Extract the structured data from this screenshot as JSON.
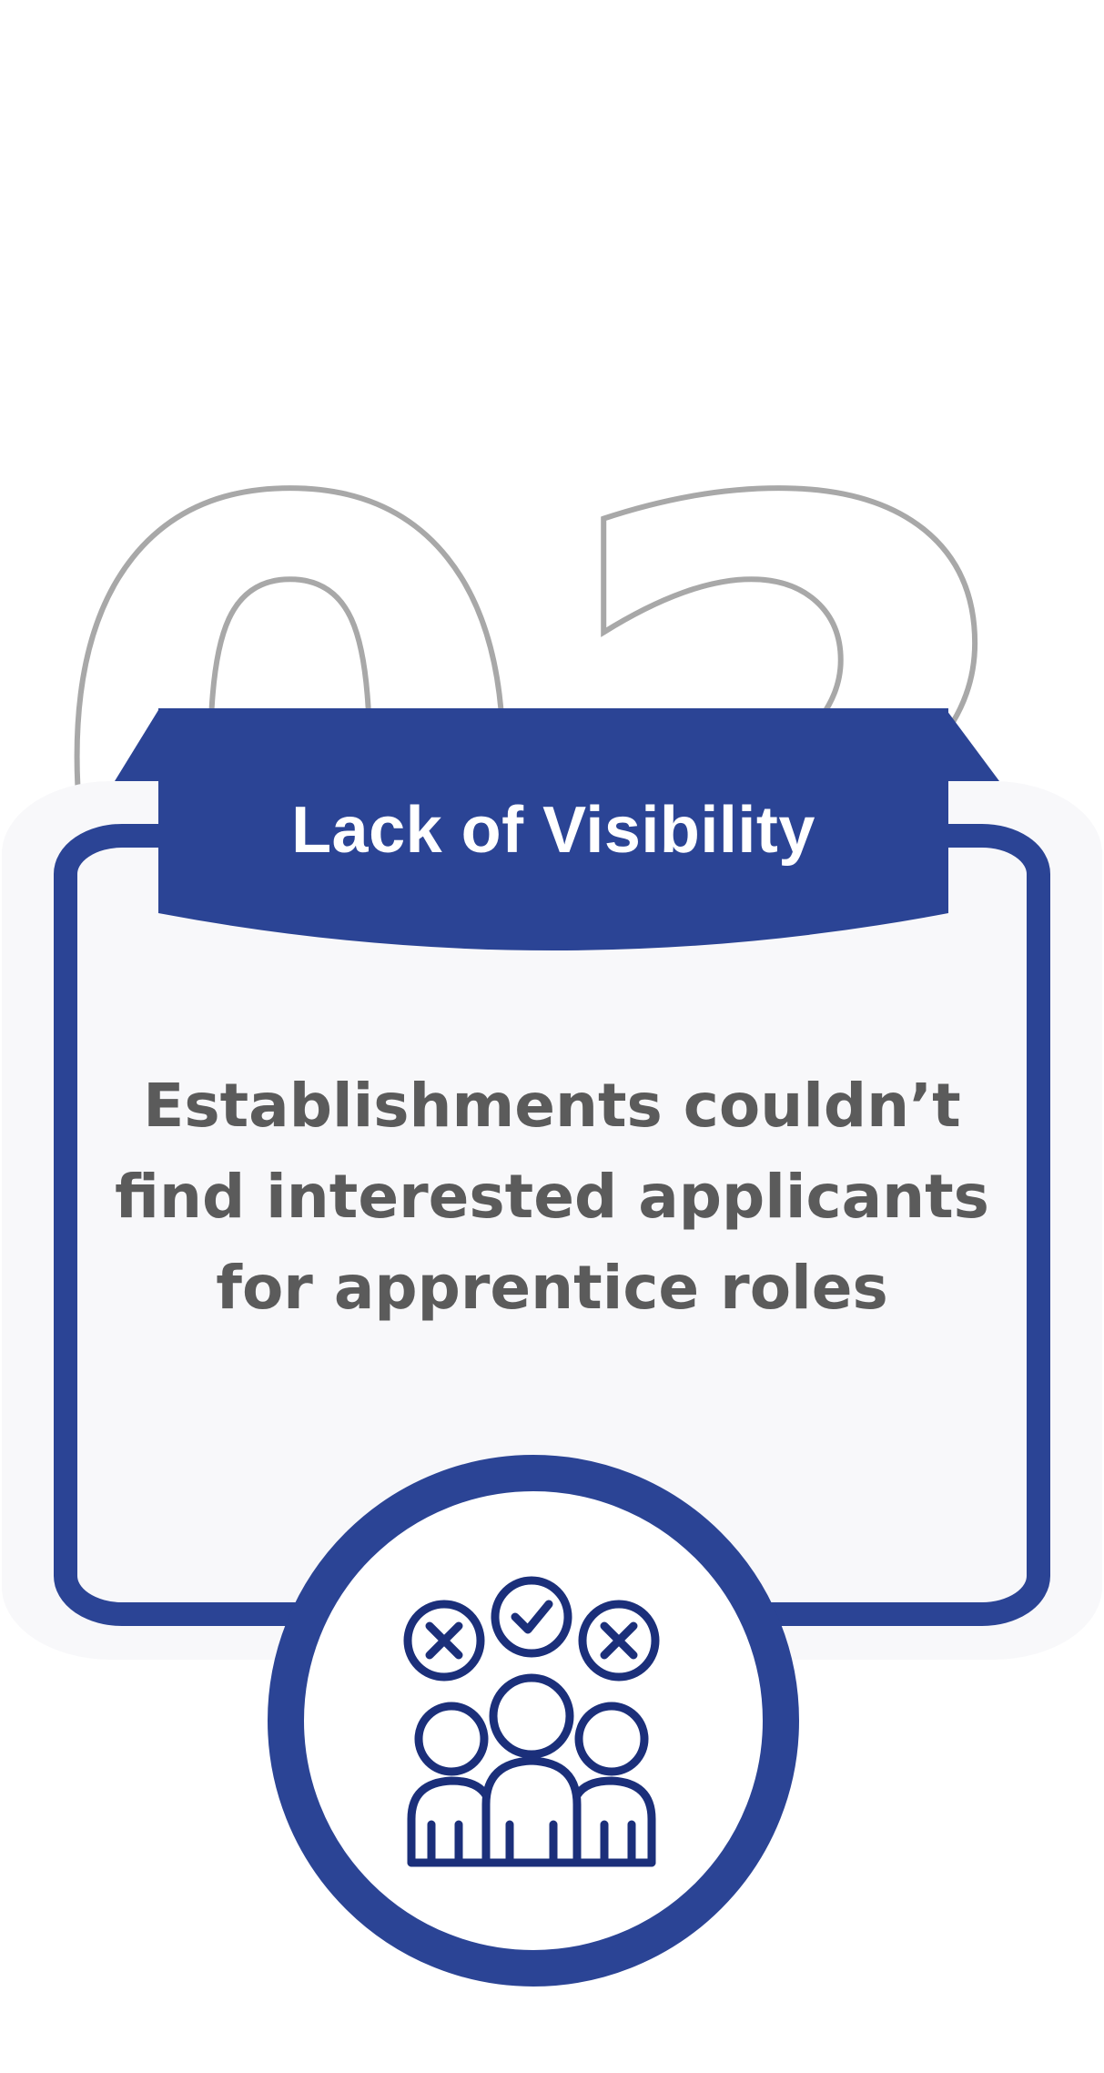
{
  "step_number": "02",
  "title": "Lack of Visibility",
  "description": "Establishments couldn’t find interested applicants for apprentice roles",
  "icon": "group-candidates-icon",
  "colors": {
    "accent": "#2b4495",
    "text": "#5b5b5b",
    "number_outline": "#a8a8a8",
    "card_background": "#f8f8fa"
  }
}
